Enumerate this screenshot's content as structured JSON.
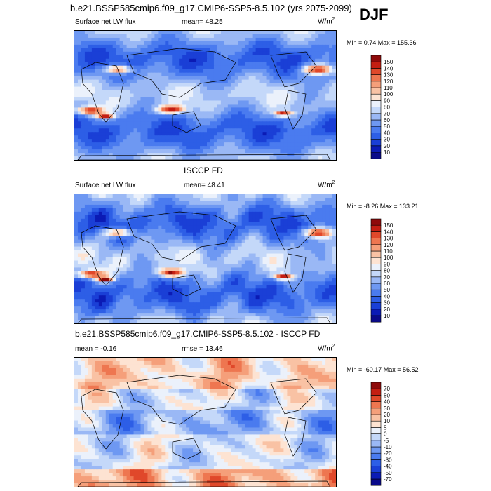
{
  "figure": {
    "title": "b.e21.BSSP585cmip6.f09_g17.CMIP6-SSP5-8.5.102 (yrs 2075-2099)",
    "season": "DJF"
  },
  "chart_data": [
    {
      "type": "heatmap",
      "panel_title": "",
      "variable": "Surface net LW flux",
      "stat_text": "mean=  48.25",
      "units_base": "W/m",
      "units_exp": "2",
      "minmax_text": "Min =   0.74 Max = 155.36",
      "levels": [
        10,
        20,
        30,
        40,
        50,
        60,
        70,
        80,
        90,
        100,
        110,
        120,
        130,
        140,
        150
      ],
      "colors": [
        "#0a0a8a",
        "#0b1bb5",
        "#1a3fd6",
        "#2d5ee6",
        "#4a7bef",
        "#6e98f2",
        "#9ab8f5",
        "#c4d8f9",
        "#ebf1fb",
        "#fde3d2",
        "#f9c2a4",
        "#f59f7a",
        "#ee7650",
        "#e0482a",
        "#c41e12",
        "#8f0a0a"
      ]
    },
    {
      "type": "heatmap",
      "panel_title": "ISCCP FD",
      "variable": "Surface net LW flux",
      "stat_text": "mean=  48.41",
      "units_base": "W/m",
      "units_exp": "2",
      "minmax_text": "Min =  -8.26 Max = 133.21",
      "levels": [
        10,
        20,
        30,
        40,
        50,
        60,
        70,
        80,
        90,
        100,
        110,
        120,
        130,
        140,
        150
      ],
      "colors": [
        "#0a0a8a",
        "#0b1bb5",
        "#1a3fd6",
        "#2d5ee6",
        "#4a7bef",
        "#6e98f2",
        "#9ab8f5",
        "#c4d8f9",
        "#ebf1fb",
        "#fde3d2",
        "#f9c2a4",
        "#f59f7a",
        "#ee7650",
        "#e0482a",
        "#c41e12",
        "#8f0a0a"
      ]
    },
    {
      "type": "heatmap",
      "panel_title": "b.e21.BSSP585cmip6.f09_g17.CMIP6-SSP5-8.5.102 - ISCCP FD",
      "variable": "",
      "stat_text": "mean =  -0.16",
      "stat2_text": "rmse =  13.46",
      "units_base": "W/m",
      "units_exp": "2",
      "minmax_text": "Min = -60.17 Max =  56.52",
      "levels": [
        -70,
        -50,
        -40,
        -30,
        -20,
        -10,
        -5,
        0,
        5,
        10,
        20,
        30,
        40,
        50,
        70
      ],
      "colors": [
        "#0a0a8a",
        "#0b1bb5",
        "#1a3fd6",
        "#2d5ee6",
        "#4a7bef",
        "#6e98f2",
        "#9ab8f5",
        "#c4d8f9",
        "#ebf1fb",
        "#fde3d2",
        "#f9c2a4",
        "#f59f7a",
        "#ee7650",
        "#e0482a",
        "#c41e12",
        "#8f0a0a"
      ]
    }
  ]
}
